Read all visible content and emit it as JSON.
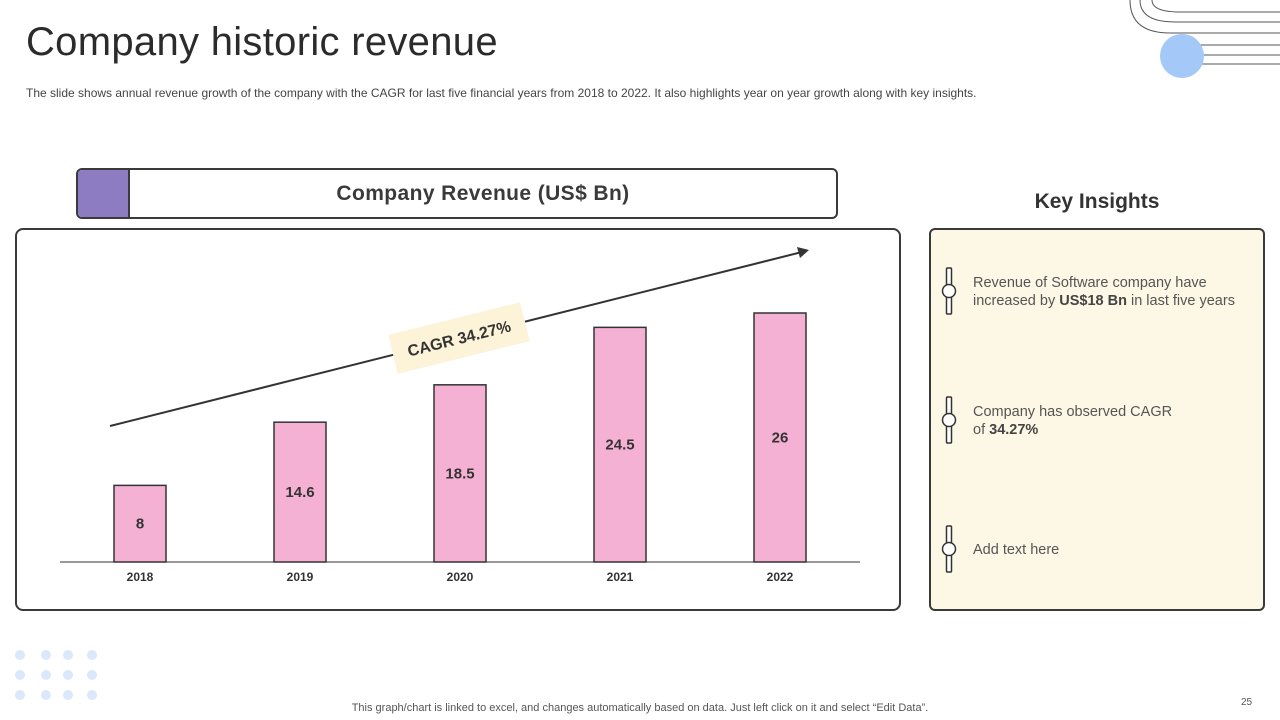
{
  "slide": {
    "title": "Company historic revenue",
    "subtitle": "The slide shows annual revenue growth of the company with the CAGR for last five financial years from 2018 to 2022. It also highlights year on year growth along with key insights.",
    "footer": "This graph/chart is linked to excel, and changes automatically based on data. Just left click on it and select “Edit Data”.",
    "page_number": "25"
  },
  "chart_data": {
    "type": "bar",
    "title": "Company Revenue (US$ Bn)",
    "categories": [
      "2018",
      "2019",
      "2020",
      "2021",
      "2022"
    ],
    "values": [
      8,
      14.6,
      18.5,
      24.5,
      26
    ],
    "labels": [
      "8",
      "14.6",
      "18.5",
      "24.5",
      "26"
    ],
    "ylim": [
      0,
      26
    ],
    "xlabel": "",
    "ylabel": "",
    "grid": false,
    "annotation": "CAGR 34.27%"
  },
  "insights": {
    "title": "Key Insights",
    "items": [
      {
        "text_before": "Revenue of Software company have increased by ",
        "bold": "US$18 Bn",
        "text_after": " in last five years"
      },
      {
        "text_before": "Company has observed CAGR of ",
        "bold": "34.27%",
        "text_after": ""
      },
      {
        "text_before": "Add text here",
        "bold": "",
        "text_after": ""
      }
    ]
  },
  "colors": {
    "bar_fill": "#f5b1d4",
    "bar_stroke": "#333333",
    "header_swatch": "#8e7cc3",
    "insights_bg": "#fdf8e6",
    "cagr_tag_bg": "#fdf3d9",
    "accent_circle": "#a4c8f7",
    "dots": "#dbe8fb"
  }
}
